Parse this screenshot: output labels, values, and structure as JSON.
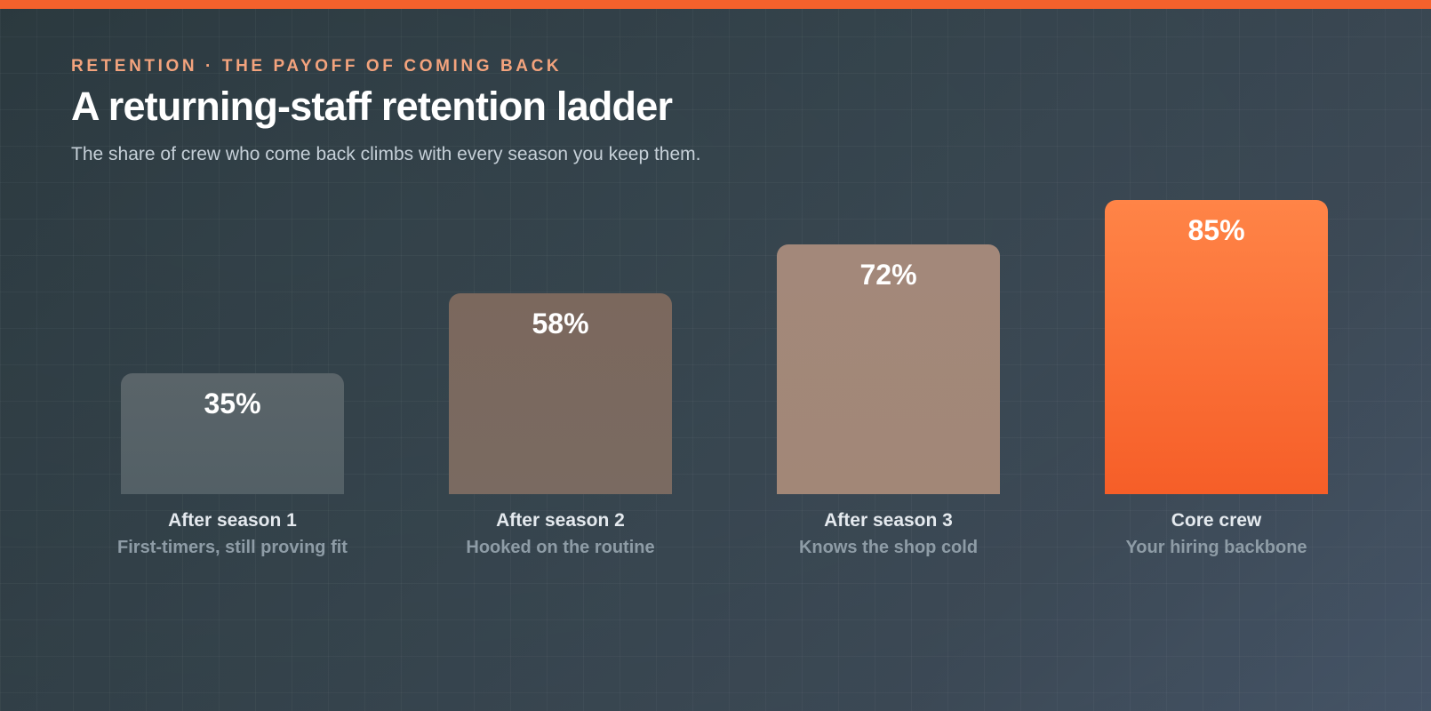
{
  "header": {
    "eyebrow": "RETENTION · THE PAYOFF OF COMING BACK",
    "title": "A returning-staff retention ladder",
    "subtitle": "The share of crew who come back climbs with every season you keep them."
  },
  "colors": {
    "accent": "#f4612c",
    "bar_1": "#5a6469",
    "bar_2": "#7b685d",
    "bar_3": "#a3887a",
    "bar_4_top": "#ff8447",
    "bar_4_bottom": "#f65e28"
  },
  "chart_data": {
    "type": "bar",
    "title": "A returning-staff retention ladder",
    "xlabel": "",
    "ylabel": "",
    "ylim": [
      0,
      100
    ],
    "grid": false,
    "categories": [
      "After season 1",
      "After season 2",
      "After season 3",
      "Core crew"
    ],
    "descriptions": [
      "First-timers, still proving fit",
      "Hooked on the routine",
      "Knows the shop cold",
      "Your hiring backbone"
    ],
    "values": [
      35,
      58,
      72,
      85
    ],
    "value_labels": [
      "35%",
      "58%",
      "72%",
      "85%"
    ],
    "unit": "%"
  }
}
